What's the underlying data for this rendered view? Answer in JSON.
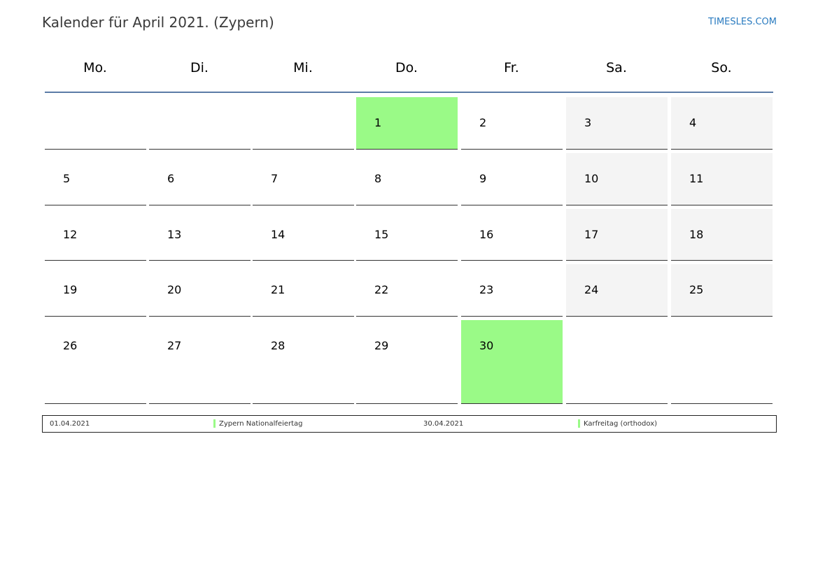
{
  "header": {
    "title": "Kalender für April 2021. (Zypern)",
    "brand": "TIMESLES.COM"
  },
  "colors": {
    "holiday": "#9afa87",
    "weekend": "#f4f4f4",
    "header_rule": "#5b7ba6",
    "brand": "#2a7bc0"
  },
  "weekdays": [
    "Mo.",
    "Di.",
    "Mi.",
    "Do.",
    "Fr.",
    "Sa.",
    "So."
  ],
  "weeks": [
    [
      null,
      null,
      null,
      1,
      2,
      3,
      4
    ],
    [
      5,
      6,
      7,
      8,
      9,
      10,
      11
    ],
    [
      12,
      13,
      14,
      15,
      16,
      17,
      18
    ],
    [
      19,
      20,
      21,
      22,
      23,
      24,
      25
    ],
    [
      26,
      27,
      28,
      29,
      30,
      null,
      null
    ]
  ],
  "holidays": [
    1,
    30
  ],
  "legend": [
    {
      "date": "01.04.2021",
      "name": "Zypern Nationalfeiertag"
    },
    {
      "date": "30.04.2021",
      "name": "Karfreitag (orthodox)"
    }
  ]
}
